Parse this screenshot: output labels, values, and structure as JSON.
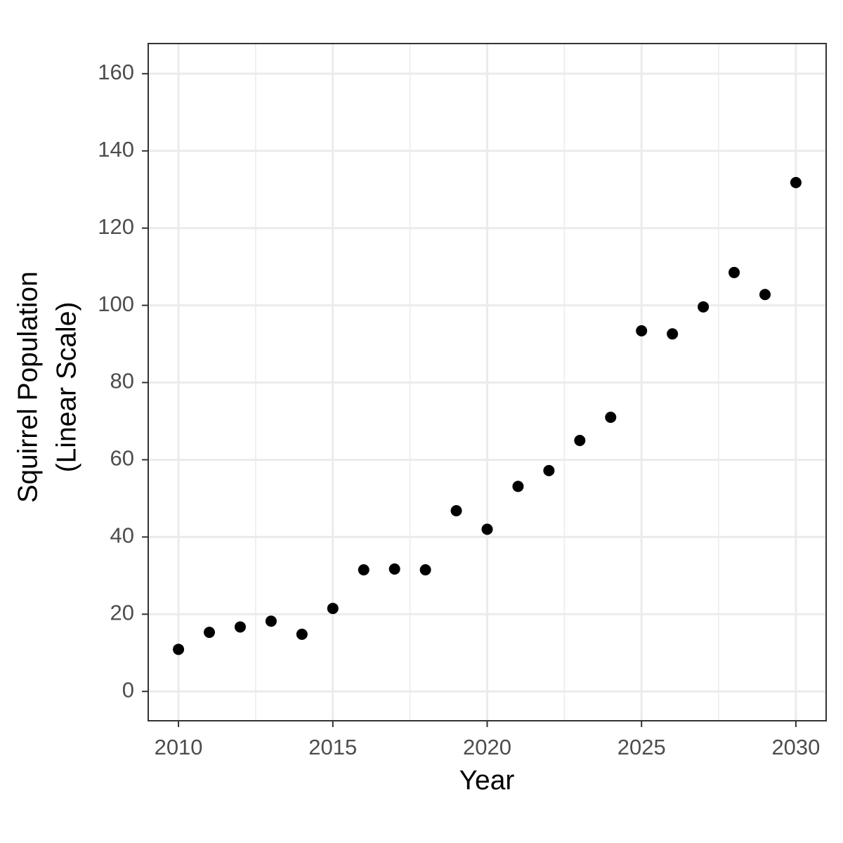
{
  "chart_data": {
    "type": "scatter",
    "xlabel": "Year",
    "ylabel": [
      "Squirrel Population",
      "(Linear Scale)"
    ],
    "x": [
      2010,
      2011,
      2012,
      2013,
      2014,
      2015,
      2016,
      2017,
      2018,
      2019,
      2020,
      2021,
      2022,
      2023,
      2024,
      2025,
      2026,
      2027,
      2028,
      2029,
      2030
    ],
    "values": [
      10.9,
      15.3,
      16.7,
      18.2,
      14.8,
      21.5,
      31.5,
      31.7,
      31.5,
      46.8,
      42.0,
      53.1,
      57.2,
      65.0,
      71.0,
      93.4,
      92.6,
      99.6,
      108.5,
      102.8,
      131.8
    ],
    "color": "#000000",
    "xlim": [
      2009.02,
      2030.98
    ],
    "ylim": [
      -7.6,
      167.8
    ],
    "xticks": [
      2010,
      2015,
      2020,
      2025,
      2030
    ],
    "yticks": [
      0,
      20,
      40,
      60,
      80,
      100,
      120,
      140,
      160
    ],
    "grid": true
  }
}
